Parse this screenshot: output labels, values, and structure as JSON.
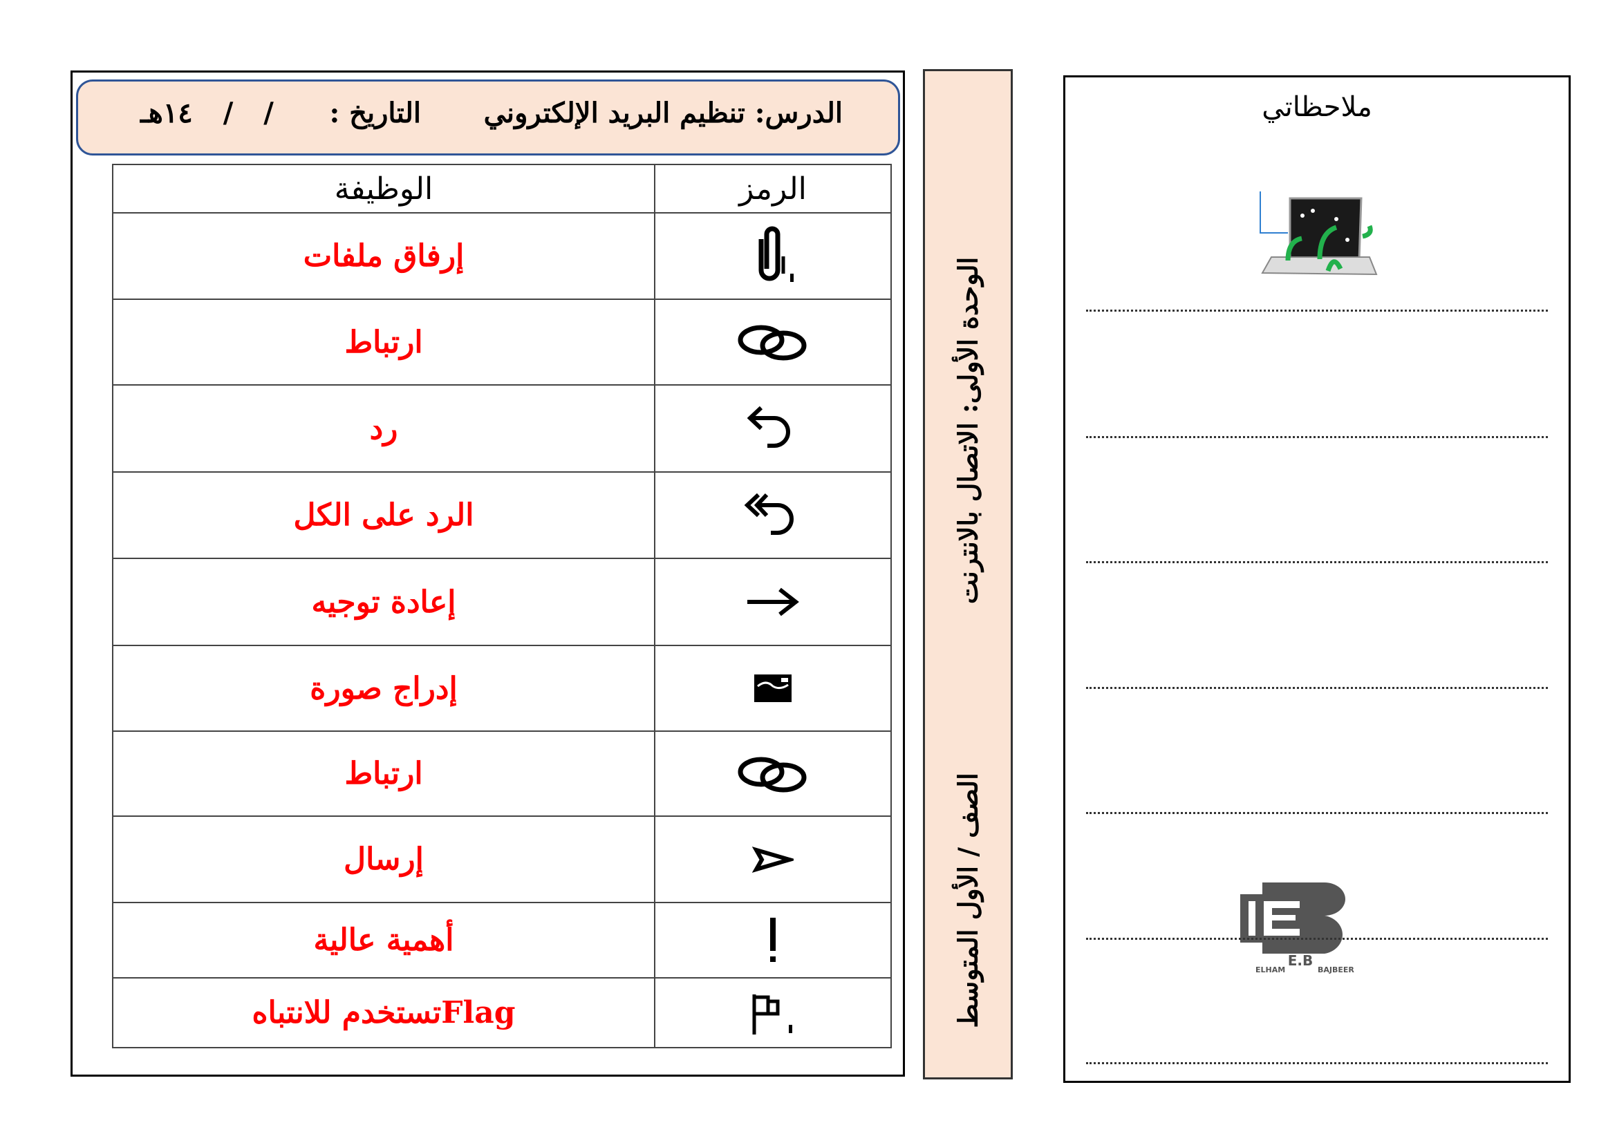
{
  "header": {
    "lesson": "الدرس: تنظيم البريد الإلكتروني",
    "date_label": "التاريخ :",
    "date_value": "/    /    ١٤هـ"
  },
  "table": {
    "columns": [
      "الرمز",
      "الوظيفة"
    ],
    "rows": [
      {
        "icon": "paperclip-icon",
        "function": "إرفاق ملفات"
      },
      {
        "icon": "link-icon",
        "function": "ارتباط"
      },
      {
        "icon": "reply-icon",
        "function": "رد"
      },
      {
        "icon": "reply-all-icon",
        "function": "الرد على الكل"
      },
      {
        "icon": "forward-arrow-icon",
        "function": "إعادة توجيه"
      },
      {
        "icon": "image-icon",
        "function": "إدراج صورة"
      },
      {
        "icon": "link-icon",
        "function": "ارتباط"
      },
      {
        "icon": "send-icon",
        "function": "إرسال"
      },
      {
        "icon": "exclamation-icon",
        "function": "أهمية عالية"
      },
      {
        "icon": "flag-icon",
        "function": "Flagتستخدم للانتباه"
      }
    ]
  },
  "side_strip": {
    "unit": "الوحدة الأولى: الاتصال بالانترنت",
    "grade": "الصف / الأول المتوسط"
  },
  "notes": {
    "title": "ملاحظاتي",
    "logo_text": "E.B ELHAM BAJBEER"
  },
  "colors": {
    "function_text": "#ff0000",
    "panel_bg": "#fbe4d5",
    "header_border": "#2f5597"
  }
}
